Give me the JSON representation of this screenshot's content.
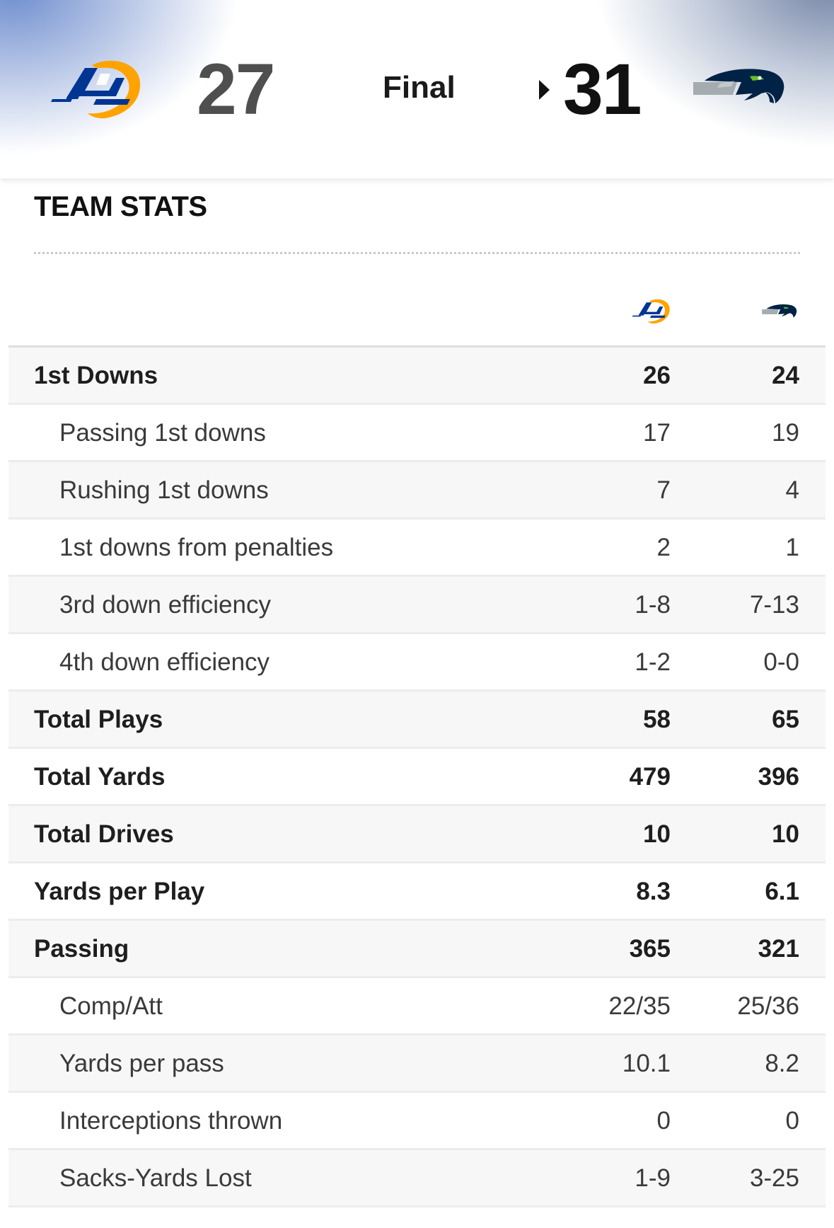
{
  "scoreboard": {
    "away_team": {
      "logo": "la-rams-logo",
      "score": "27",
      "color": "#003594",
      "accent": "#FFA300"
    },
    "home_team": {
      "logo": "seattle-seahawks-logo",
      "score": "31",
      "color": "#002244",
      "accent": "#69BE28"
    },
    "status": "Final",
    "winner_indicator": "triangle-right-icon"
  },
  "team_stats": {
    "title": "TEAM STATS",
    "columns": [
      "la-rams-logo",
      "seattle-seahawks-logo"
    ],
    "rows": [
      {
        "label": "1st Downs",
        "away": "26",
        "home": "24",
        "type": "main"
      },
      {
        "label": "Passing 1st downs",
        "away": "17",
        "home": "19",
        "type": "sub"
      },
      {
        "label": "Rushing 1st downs",
        "away": "7",
        "home": "4",
        "type": "sub"
      },
      {
        "label": "1st downs from penalties",
        "away": "2",
        "home": "1",
        "type": "sub"
      },
      {
        "label": "3rd down efficiency",
        "away": "1-8",
        "home": "7-13",
        "type": "sub"
      },
      {
        "label": "4th down efficiency",
        "away": "1-2",
        "home": "0-0",
        "type": "sub"
      },
      {
        "label": "Total Plays",
        "away": "58",
        "home": "65",
        "type": "main"
      },
      {
        "label": "Total Yards",
        "away": "479",
        "home": "396",
        "type": "main"
      },
      {
        "label": "Total Drives",
        "away": "10",
        "home": "10",
        "type": "main"
      },
      {
        "label": "Yards per Play",
        "away": "8.3",
        "home": "6.1",
        "type": "main"
      },
      {
        "label": "Passing",
        "away": "365",
        "home": "321",
        "type": "main"
      },
      {
        "label": "Comp/Att",
        "away": "22/35",
        "home": "25/36",
        "type": "sub"
      },
      {
        "label": "Yards per pass",
        "away": "10.1",
        "home": "8.2",
        "type": "sub"
      },
      {
        "label": "Interceptions thrown",
        "away": "0",
        "home": "0",
        "type": "sub"
      },
      {
        "label": "Sacks-Yards Lost",
        "away": "1-9",
        "home": "3-25",
        "type": "sub"
      }
    ]
  }
}
